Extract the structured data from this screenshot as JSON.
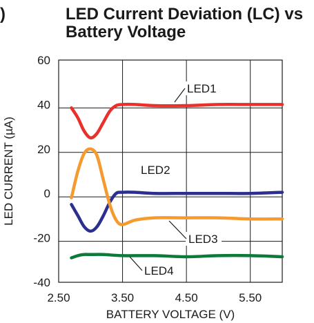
{
  "fragment": ")",
  "chart_data": {
    "type": "line",
    "title": "LED Current Deviation (LC) vs Battery Voltage",
    "xlabel": "BATTERY VOLTAGE (V)",
    "ylabel": "LED CURRENT (µA)",
    "xlim": [
      2.5,
      6.0
    ],
    "ylim": [
      -40,
      60
    ],
    "xticks": [
      "2.50",
      "3.50",
      "4.50",
      "5.50"
    ],
    "yticks": [
      "60",
      "40",
      "20",
      "0",
      "-20",
      "-40"
    ],
    "grid": true,
    "series": [
      {
        "name": "LED1",
        "color": "#e8312b",
        "x": [
          2.7,
          2.8,
          2.9,
          3.0,
          3.1,
          3.2,
          3.3,
          3.4,
          3.5,
          3.7,
          4.0,
          4.5,
          5.0,
          5.5,
          6.0
        ],
        "y": [
          38.5,
          34,
          28,
          25,
          27,
          32,
          37,
          39.5,
          40,
          40,
          39.5,
          39.5,
          40,
          40,
          40
        ]
      },
      {
        "name": "LED2",
        "color": "#2b2f8f",
        "x": [
          2.7,
          2.8,
          2.9,
          3.0,
          3.1,
          3.2,
          3.3,
          3.4,
          3.5,
          3.7,
          4.0,
          4.5,
          5.0,
          5.5,
          6.0
        ],
        "y": [
          -5,
          -10,
          -15,
          -17,
          -15,
          -10,
          -4,
          0,
          0.5,
          0.5,
          0,
          0,
          0,
          0,
          0.5
        ]
      },
      {
        "name": "LED3",
        "color": "#f59a2e",
        "x": [
          2.7,
          2.8,
          2.9,
          3.0,
          3.1,
          3.2,
          3.3,
          3.4,
          3.5,
          3.7,
          4.0,
          4.5,
          5.0,
          5.5,
          6.0
        ],
        "y": [
          -2,
          10,
          18,
          20,
          17,
          6,
          -5,
          -12,
          -14,
          -12,
          -11,
          -11,
          -11,
          -11.5,
          -11.5
        ]
      },
      {
        "name": "LED4",
        "color": "#0d7a3a",
        "x": [
          2.7,
          2.8,
          2.9,
          3.0,
          3.2,
          3.5,
          4.0,
          4.5,
          5.0,
          5.5,
          6.0
        ],
        "y": [
          -29,
          -28,
          -27.5,
          -27.5,
          -27.5,
          -28,
          -28,
          -28.5,
          -28,
          -28,
          -28.5
        ]
      }
    ],
    "annotations": [
      {
        "text": "LED1",
        "series": "LED1"
      },
      {
        "text": "LED2",
        "series": "LED2"
      },
      {
        "text": "LED3",
        "series": "LED3"
      },
      {
        "text": "LED4",
        "series": "LED4"
      }
    ]
  }
}
